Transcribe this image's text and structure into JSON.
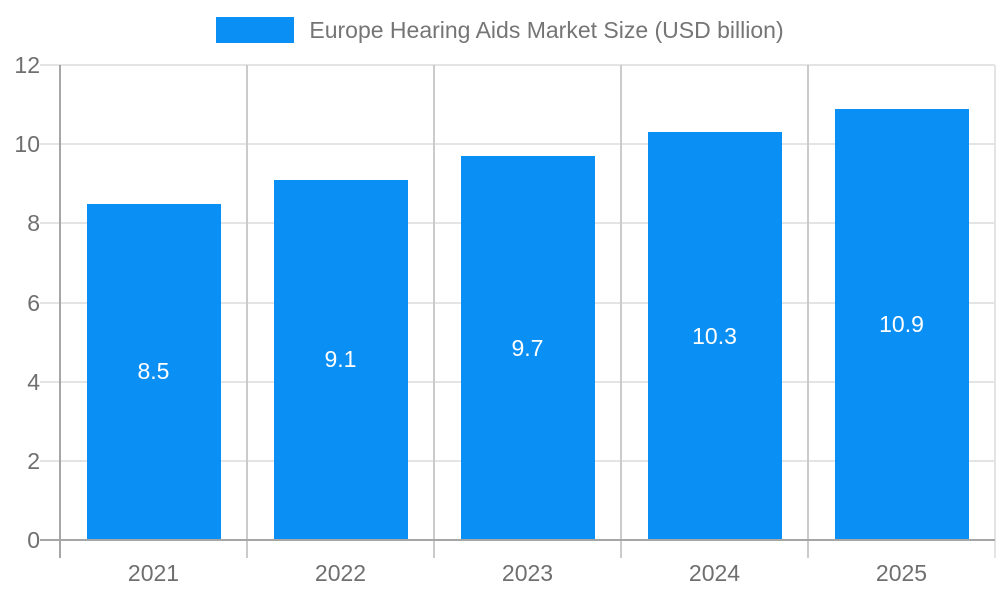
{
  "legend": {
    "series_label": "Europe Hearing Aids Market Size (USD billion)"
  },
  "chart_data": {
    "type": "bar",
    "title": "Europe Hearing Aids Market Size (USD billion)",
    "categories": [
      "2021",
      "2022",
      "2023",
      "2024",
      "2025"
    ],
    "values": [
      8.5,
      9.1,
      9.7,
      10.3,
      10.9
    ],
    "bar_labels": [
      "8.5",
      "9.1",
      "9.7",
      "10.3",
      "10.9"
    ],
    "xlabel": "",
    "ylabel": "",
    "ylim": [
      0,
      12
    ],
    "yticks": [
      0,
      2,
      4,
      6,
      8,
      10,
      12
    ],
    "grid": true,
    "legend_position": "top",
    "colors": {
      "bar": "#0A8FF5",
      "bar_label_text": "#FFFFFF",
      "legend_text": "#757575",
      "axis_text": "#6F6F6F",
      "axis_line": "#A6A6A6",
      "gridline_horizontal": "#E4E4E4",
      "gridline_vertical": "#CBCBCB",
      "plot_right_border": "#E4E4E4"
    }
  }
}
